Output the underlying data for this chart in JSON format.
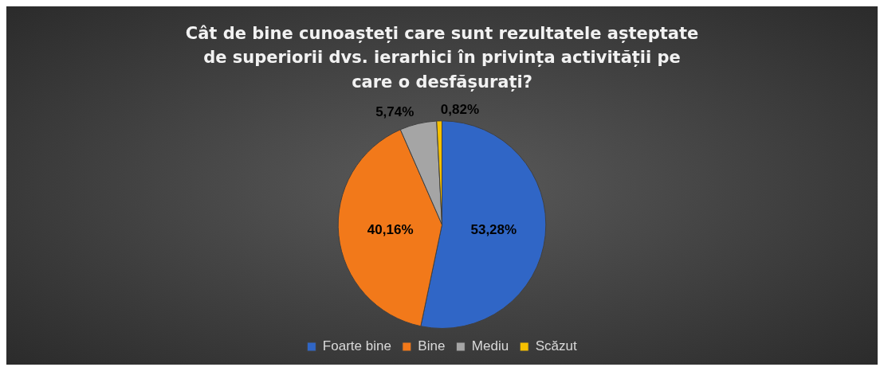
{
  "chart_data": {
    "type": "pie",
    "title": "Cât de bine cunoașteți care sunt rezultatele așteptate de superiorii dvs. ierarhici în privința activității pe care o desfășurați?",
    "categories": [
      "Foarte bine",
      "Bine",
      "Mediu",
      "Scăzut"
    ],
    "values": [
      53.28,
      40.16,
      5.74,
      0.82
    ],
    "value_labels": [
      "53,28%",
      "40,16%",
      "5,74%",
      "0,82%"
    ],
    "colors": [
      "#3066c6",
      "#f2791a",
      "#a5a5a5",
      "#f5c000"
    ],
    "legend": "bottom"
  }
}
